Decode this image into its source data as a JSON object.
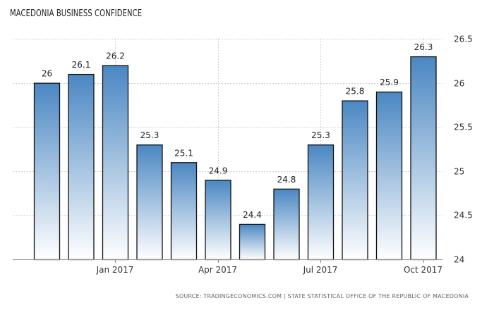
{
  "chart_data": {
    "type": "bar",
    "title": "MACEDONIA BUSINESS CONFIDENCE",
    "source": "SOURCE: TRADINGECONOMICS.COM | STATE STATISTICAL OFFICE OF THE REPUBLIC OF MACEDONIA",
    "values": [
      26,
      26.1,
      26.2,
      25.3,
      25.1,
      24.9,
      24.4,
      24.8,
      25.3,
      25.8,
      25.9,
      26.3
    ],
    "data_labels": [
      "26",
      "26.1",
      "26.2",
      "25.3",
      "25.1",
      "24.9",
      "24.4",
      "24.8",
      "25.3",
      "25.8",
      "25.9",
      "26.3"
    ],
    "x_tick_labels": [
      {
        "bar_index": 2,
        "label": "Jan 2017"
      },
      {
        "bar_index": 5,
        "label": "Apr 2017"
      },
      {
        "bar_index": 8,
        "label": "Jul 2017"
      },
      {
        "bar_index": 11,
        "label": "Oct 2017"
      }
    ],
    "ylim": [
      24,
      26.5
    ],
    "y_ticks": [
      24,
      24.5,
      25,
      25.5,
      26,
      26.5
    ],
    "y_tick_labels": [
      "24",
      "24.5",
      "25",
      "25.5",
      "26",
      "26.5"
    ],
    "y_axis_side": "right",
    "grid": true,
    "colors": {
      "bar_top": "#4a87c2",
      "bar_bottom": "#ffffff",
      "bar_outline": "#111111",
      "grid": "#d0d0d0"
    }
  }
}
